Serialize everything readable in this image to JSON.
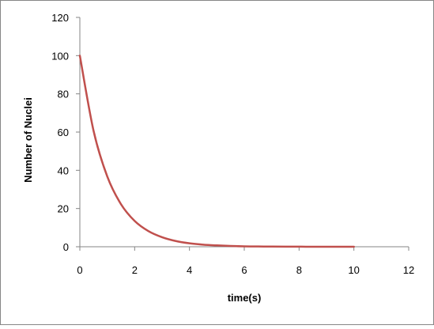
{
  "chart_data": {
    "type": "line",
    "title": "",
    "xlabel": "time(s)",
    "ylabel": "Number of Nuclei",
    "xlim": [
      0,
      12
    ],
    "ylim": [
      0,
      120
    ],
    "x_ticks": [
      "0",
      "2",
      "4",
      "6",
      "8",
      "10",
      "12"
    ],
    "y_ticks": [
      "0",
      "20",
      "40",
      "60",
      "80",
      "100",
      "120"
    ],
    "grid": false,
    "legend": "none",
    "series": [
      {
        "color": "#c0504d",
        "x": [
          0,
          0.5,
          1,
          1.5,
          2,
          2.5,
          3,
          3.5,
          4,
          4.5,
          5,
          5.5,
          6,
          6.5,
          7,
          7.5,
          8,
          8.5,
          9,
          9.5,
          10
        ],
        "y": [
          100,
          60.7,
          36.8,
          22.3,
          13.5,
          8.2,
          5.0,
          3.0,
          1.8,
          1.1,
          0.7,
          0.4,
          0.2,
          0.15,
          0.09,
          0.06,
          0.03,
          0.02,
          0.01,
          0.01,
          0.0
        ]
      }
    ]
  }
}
